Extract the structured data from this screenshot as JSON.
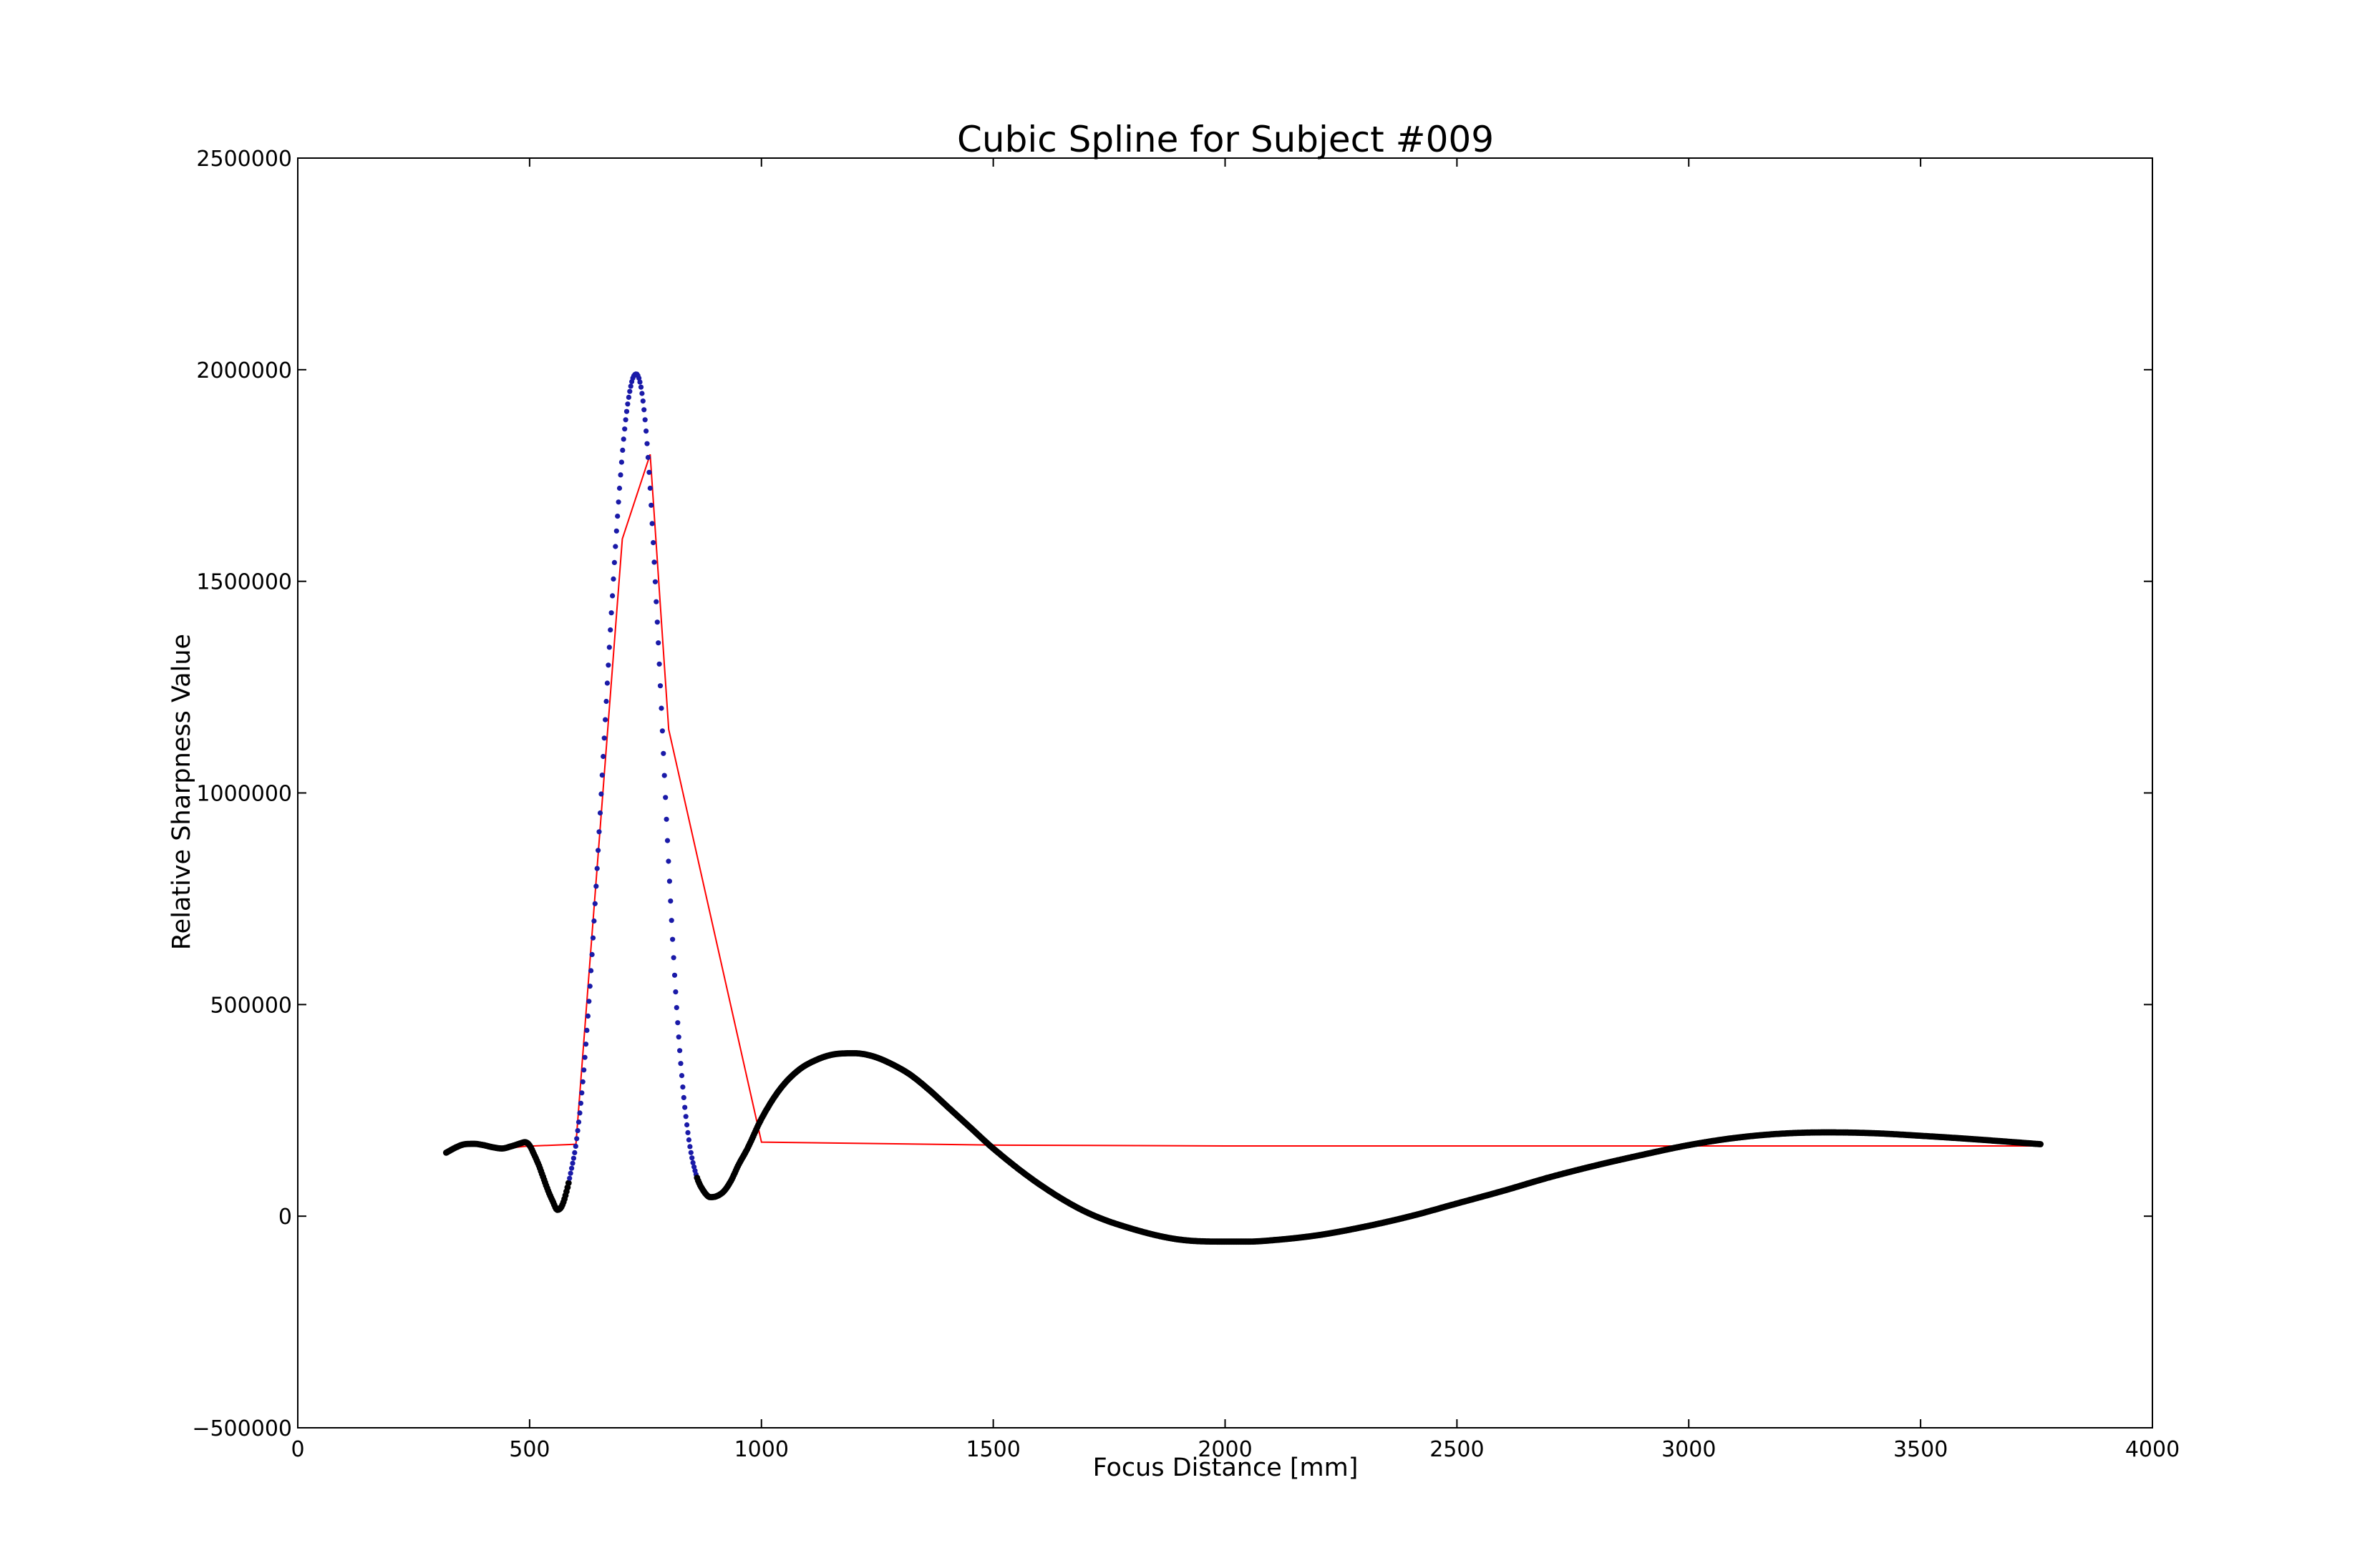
{
  "chart_data": {
    "type": "line",
    "title": "Cubic Spline for Subject #009",
    "xlabel": "Focus Distance [mm]",
    "ylabel": "Relative Sharpness Value",
    "xlim": [
      0,
      4000
    ],
    "ylim": [
      -500000,
      2500000
    ],
    "xticks": [
      0,
      500,
      1000,
      1500,
      2000,
      2500,
      3000,
      3500,
      4000
    ],
    "xtick_labels": [
      "0",
      "500",
      "1000",
      "1500",
      "2000",
      "2500",
      "3000",
      "3500",
      "4000"
    ],
    "yticks": [
      -500000,
      0,
      500000,
      1000000,
      1500000,
      2000000,
      2500000
    ],
    "ytick_labels": [
      "−500000",
      "0",
      "500000",
      "1000000",
      "1500000",
      "2000000",
      "2500000"
    ],
    "grid": false,
    "legend": "none",
    "series": [
      {
        "style": "thin red line (linear interpolation of sample points)",
        "color": "#ff0000",
        "x": [
          320,
          360,
          400,
          450,
          490,
          600,
          700,
          760,
          800,
          1000,
          1500,
          2000,
          2500,
          3000,
          3500,
          3760
        ],
        "y": [
          150000,
          170000,
          168000,
          160000,
          165000,
          170000,
          1600000,
          1800000,
          1150000,
          175000,
          168000,
          166000,
          166000,
          166000,
          166000,
          166000
        ]
      },
      {
        "style": "cubic spline drawn as dense dots (blue on the main peak, black elsewhere)",
        "colors": {
          "peak": "#1a1aa8",
          "rest": "#000000"
        },
        "x": [
          320,
          340,
          360,
          380,
          400,
          420,
          440,
          460,
          480,
          490,
          500,
          510,
          520,
          530,
          540,
          550,
          560,
          570,
          580,
          590,
          600,
          615,
          630,
          645,
          660,
          675,
          690,
          705,
          720,
          730,
          740,
          750,
          760,
          770,
          780,
          790,
          800,
          815,
          830,
          845,
          860,
          875,
          890,
          905,
          920,
          935,
          950,
          970,
          1000,
          1040,
          1080,
          1120,
          1160,
          1200,
          1240,
          1280,
          1320,
          1360,
          1400,
          1450,
          1500,
          1600,
          1700,
          1800,
          1900,
          2000,
          2050,
          2100,
          2200,
          2300,
          2400,
          2500,
          2600,
          2700,
          2800,
          2900,
          3000,
          3100,
          3200,
          3300,
          3400,
          3500,
          3600,
          3700,
          3760
        ],
        "y": [
          150000,
          162000,
          170000,
          171000,
          168000,
          163000,
          160000,
          165000,
          172000,
          175000,
          167000,
          145000,
          120000,
          90000,
          60000,
          35000,
          15000,
          25000,
          60000,
          110000,
          170000,
          320000,
          540000,
          810000,
          1110000,
          1400000,
          1660000,
          1860000,
          1970000,
          1990000,
          1960000,
          1870000,
          1720000,
          1520000,
          1300000,
          1060000,
          830000,
          530000,
          310000,
          170000,
          95000,
          60000,
          45000,
          48000,
          60000,
          85000,
          120000,
          160000,
          230000,
          300000,
          345000,
          370000,
          383000,
          385000,
          378000,
          360000,
          335000,
          300000,
          260000,
          210000,
          160000,
          75000,
          10000,
          -30000,
          -55000,
          -60000,
          -60000,
          -57000,
          -45000,
          -25000,
          0,
          30000,
          60000,
          92000,
          120000,
          145000,
          168000,
          185000,
          195000,
          198000,
          196000,
          190000,
          183000,
          175000,
          170000
        ]
      }
    ]
  }
}
